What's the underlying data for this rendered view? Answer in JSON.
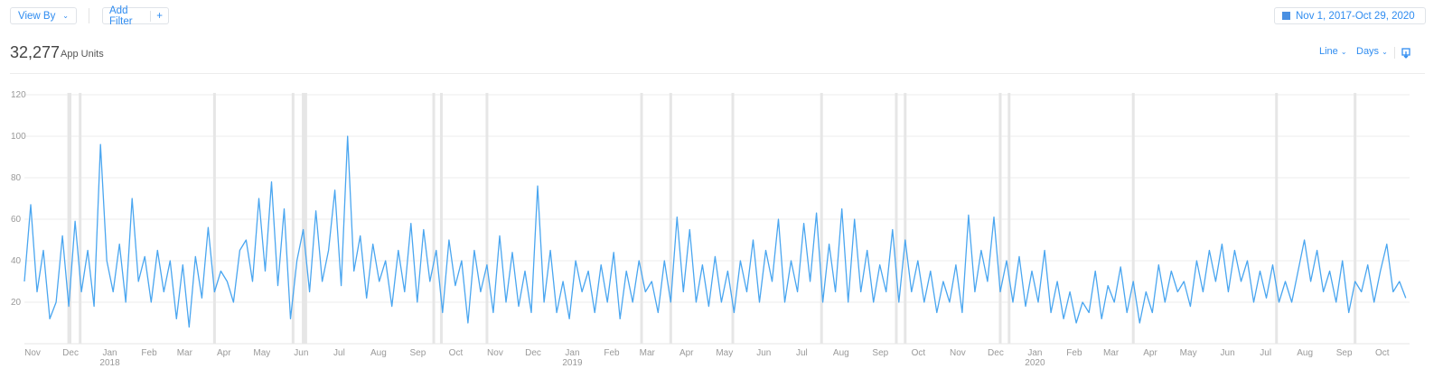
{
  "toolbar": {
    "view_by": "View By",
    "add_filter": "Add Filter",
    "add_symbol": "+",
    "date_range": "Nov 1, 2017-Oct 29, 2020"
  },
  "summary": {
    "total": "32,277",
    "metric": "App Units"
  },
  "controls": {
    "chart_type": "Line",
    "granularity": "Days"
  },
  "colors": {
    "line": "#4aa6f0",
    "accent": "#2f8cf0",
    "marker": "#e6e6e6",
    "grid": "#eeeeee"
  },
  "chart_data": {
    "type": "line",
    "title": "App Units",
    "start_date": "2017-11-01",
    "end_date": "2020-10-29",
    "sample_step_days": 5,
    "ylim": [
      0,
      120
    ],
    "yticks": [
      20,
      40,
      60,
      80,
      100,
      120
    ],
    "grid": true,
    "series": [
      {
        "name": "App Units",
        "values": [
          30,
          67,
          25,
          45,
          12,
          20,
          52,
          18,
          59,
          25,
          45,
          18,
          96,
          40,
          25,
          48,
          20,
          70,
          30,
          42,
          20,
          45,
          25,
          40,
          12,
          38,
          8,
          42,
          22,
          56,
          25,
          35,
          30,
          20,
          45,
          50,
          30,
          70,
          35,
          78,
          28,
          65,
          12,
          40,
          55,
          25,
          64,
          30,
          45,
          74,
          28,
          100,
          35,
          52,
          22,
          48,
          30,
          40,
          18,
          45,
          25,
          58,
          20,
          55,
          30,
          45,
          15,
          50,
          28,
          40,
          10,
          45,
          25,
          38,
          15,
          52,
          20,
          44,
          18,
          35,
          15,
          76,
          20,
          45,
          15,
          30,
          12,
          40,
          25,
          35,
          15,
          38,
          20,
          44,
          12,
          35,
          20,
          40,
          25,
          30,
          15,
          40,
          20,
          61,
          25,
          55,
          20,
          38,
          18,
          42,
          20,
          35,
          15,
          40,
          25,
          50,
          20,
          45,
          30,
          60,
          20,
          40,
          25,
          58,
          30,
          63,
          20,
          48,
          25,
          65,
          20,
          60,
          25,
          45,
          20,
          38,
          25,
          55,
          20,
          50,
          25,
          40,
          20,
          35,
          15,
          30,
          20,
          38,
          15,
          62,
          25,
          45,
          30,
          61,
          25,
          40,
          20,
          42,
          18,
          35,
          20,
          45,
          15,
          30,
          12,
          25,
          10,
          20,
          15,
          35,
          12,
          28,
          20,
          37,
          15,
          30,
          10,
          25,
          15,
          38,
          20,
          35,
          25,
          30,
          18,
          40,
          25,
          45,
          30,
          48,
          25,
          45,
          30,
          40,
          20,
          35,
          22,
          38,
          20,
          30,
          20,
          35,
          50,
          30,
          45,
          25,
          35,
          20,
          40,
          15,
          30,
          25,
          38,
          20,
          35,
          48,
          25,
          30,
          22
        ]
      }
    ],
    "event_marker_day_offsets": [
      35,
      36,
      44,
      150,
      212,
      220,
      222,
      323,
      329,
      365,
      487,
      510,
      559,
      629,
      688,
      695,
      770,
      777,
      875,
      988,
      1050
    ],
    "x_ticks": [
      {
        "label": "Nov",
        "year": ""
      },
      {
        "label": "Dec",
        "year": ""
      },
      {
        "label": "Jan",
        "year": "2018"
      },
      {
        "label": "Feb",
        "year": ""
      },
      {
        "label": "Mar",
        "year": ""
      },
      {
        "label": "Apr",
        "year": ""
      },
      {
        "label": "May",
        "year": ""
      },
      {
        "label": "Jun",
        "year": ""
      },
      {
        "label": "Jul",
        "year": ""
      },
      {
        "label": "Aug",
        "year": ""
      },
      {
        "label": "Sep",
        "year": ""
      },
      {
        "label": "Oct",
        "year": ""
      },
      {
        "label": "Nov",
        "year": ""
      },
      {
        "label": "Dec",
        "year": ""
      },
      {
        "label": "Jan",
        "year": "2019"
      },
      {
        "label": "Feb",
        "year": ""
      },
      {
        "label": "Mar",
        "year": ""
      },
      {
        "label": "Apr",
        "year": ""
      },
      {
        "label": "May",
        "year": ""
      },
      {
        "label": "Jun",
        "year": ""
      },
      {
        "label": "Jul",
        "year": ""
      },
      {
        "label": "Aug",
        "year": ""
      },
      {
        "label": "Sep",
        "year": ""
      },
      {
        "label": "Oct",
        "year": ""
      },
      {
        "label": "Nov",
        "year": ""
      },
      {
        "label": "Dec",
        "year": ""
      },
      {
        "label": "Jan",
        "year": "2020"
      },
      {
        "label": "Feb",
        "year": ""
      },
      {
        "label": "Mar",
        "year": ""
      },
      {
        "label": "Apr",
        "year": ""
      },
      {
        "label": "May",
        "year": ""
      },
      {
        "label": "Jun",
        "year": ""
      },
      {
        "label": "Jul",
        "year": ""
      },
      {
        "label": "Aug",
        "year": ""
      },
      {
        "label": "Sep",
        "year": ""
      },
      {
        "label": "Oct",
        "year": ""
      }
    ]
  }
}
